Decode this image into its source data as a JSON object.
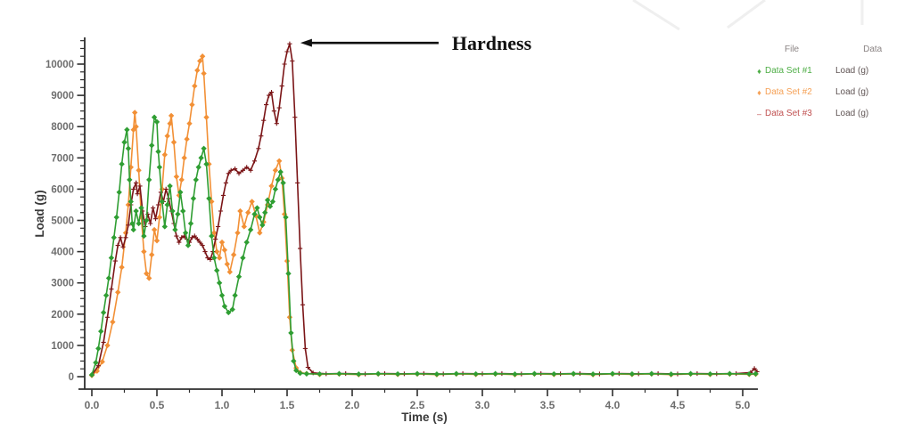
{
  "figure": {
    "legend": {
      "col1_header": "File",
      "col2_header": "Data",
      "entries": [
        {
          "file": "Data Set #1",
          "data": "Load (g)",
          "color": "#4fae47",
          "marker_glyph": "♦"
        },
        {
          "file": "Data Set #2",
          "data": "Load (g)",
          "color": "#f5a055",
          "marker_glyph": "♦"
        },
        {
          "file": "Data Set #3",
          "data": "Load (g)",
          "color": "#c05050",
          "marker_glyph": "–"
        }
      ]
    }
  },
  "chart_data": {
    "type": "line",
    "title": "",
    "xlabel": "Time (s)",
    "ylabel": "Load (g)",
    "xlim": [
      0,
      5.1
    ],
    "ylim": [
      0,
      10860
    ],
    "x_ticks": [
      0.0,
      0.5,
      1.0,
      1.5,
      2.0,
      2.5,
      3.0,
      3.5,
      4.0,
      4.5,
      5.0
    ],
    "y_ticks": [
      0,
      1000,
      2000,
      3000,
      4000,
      5000,
      6000,
      7000,
      8000,
      9000,
      10000
    ],
    "x_minor_step": 0.25,
    "y_minor_step": 250,
    "grid": false,
    "legend_position": "right",
    "annotation": {
      "text": "Hardness",
      "points_to": {
        "t": 1.52,
        "load": 10650
      }
    },
    "colors": {
      "axis": "#2e2e2e",
      "tick_label": "#6e6e6e",
      "axis_label": "#3a3a3a",
      "annotation_text": "#111111",
      "arrow": "#111111"
    },
    "series": [
      {
        "name": "Data Set #1 Load (g)",
        "color": "#2f9e33",
        "marker": "diamond",
        "points": [
          [
            0.0,
            60
          ],
          [
            0.03,
            450
          ],
          [
            0.05,
            900
          ],
          [
            0.07,
            1450
          ],
          [
            0.09,
            2050
          ],
          [
            0.11,
            2600
          ],
          [
            0.13,
            3150
          ],
          [
            0.15,
            3800
          ],
          [
            0.17,
            4450
          ],
          [
            0.19,
            5100
          ],
          [
            0.21,
            5900
          ],
          [
            0.23,
            6800
          ],
          [
            0.25,
            7500
          ],
          [
            0.27,
            7900
          ],
          [
            0.28,
            7300
          ],
          [
            0.29,
            6300
          ],
          [
            0.3,
            5600
          ],
          [
            0.31,
            4900
          ],
          [
            0.32,
            4700
          ],
          [
            0.34,
            5300
          ],
          [
            0.36,
            4900
          ],
          [
            0.38,
            5400
          ],
          [
            0.4,
            4500
          ],
          [
            0.42,
            5000
          ],
          [
            0.44,
            6300
          ],
          [
            0.46,
            7400
          ],
          [
            0.48,
            8300
          ],
          [
            0.5,
            8150
          ],
          [
            0.51,
            7200
          ],
          [
            0.52,
            6700
          ],
          [
            0.54,
            5600
          ],
          [
            0.56,
            4800
          ],
          [
            0.58,
            5500
          ],
          [
            0.6,
            6100
          ],
          [
            0.62,
            5300
          ],
          [
            0.64,
            4700
          ],
          [
            0.66,
            5200
          ],
          [
            0.68,
            5900
          ],
          [
            0.7,
            5300
          ],
          [
            0.72,
            4600
          ],
          [
            0.74,
            4200
          ],
          [
            0.76,
            4900
          ],
          [
            0.78,
            5700
          ],
          [
            0.8,
            6300
          ],
          [
            0.82,
            6700
          ],
          [
            0.84,
            7000
          ],
          [
            0.86,
            7300
          ],
          [
            0.88,
            6800
          ],
          [
            0.9,
            5700
          ],
          [
            0.92,
            4500
          ],
          [
            0.94,
            3800
          ],
          [
            0.96,
            3400
          ],
          [
            0.98,
            3000
          ],
          [
            1.0,
            2600
          ],
          [
            1.02,
            2250
          ],
          [
            1.05,
            2050
          ],
          [
            1.08,
            2150
          ],
          [
            1.1,
            2600
          ],
          [
            1.13,
            3200
          ],
          [
            1.16,
            3800
          ],
          [
            1.19,
            4300
          ],
          [
            1.22,
            4700
          ],
          [
            1.25,
            5200
          ],
          [
            1.27,
            5400
          ],
          [
            1.29,
            5100
          ],
          [
            1.31,
            4850
          ],
          [
            1.33,
            5250
          ],
          [
            1.35,
            5650
          ],
          [
            1.37,
            5450
          ],
          [
            1.39,
            5600
          ],
          [
            1.41,
            6000
          ],
          [
            1.43,
            6300
          ],
          [
            1.45,
            6550
          ],
          [
            1.47,
            6200
          ],
          [
            1.49,
            5100
          ],
          [
            1.51,
            3300
          ],
          [
            1.53,
            1400
          ],
          [
            1.55,
            500
          ],
          [
            1.57,
            200
          ],
          [
            1.6,
            110
          ],
          [
            1.65,
            90
          ],
          [
            1.75,
            85
          ],
          [
            1.9,
            95
          ],
          [
            2.05,
            80
          ],
          [
            2.2,
            95
          ],
          [
            2.35,
            85
          ],
          [
            2.5,
            95
          ],
          [
            2.65,
            80
          ],
          [
            2.8,
            95
          ],
          [
            2.95,
            85
          ],
          [
            3.1,
            95
          ],
          [
            3.25,
            80
          ],
          [
            3.4,
            95
          ],
          [
            3.55,
            85
          ],
          [
            3.7,
            95
          ],
          [
            3.85,
            80
          ],
          [
            4.0,
            95
          ],
          [
            4.15,
            85
          ],
          [
            4.3,
            95
          ],
          [
            4.45,
            80
          ],
          [
            4.6,
            95
          ],
          [
            4.75,
            85
          ],
          [
            4.9,
            95
          ],
          [
            5.05,
            85
          ],
          [
            5.1,
            90
          ]
        ]
      },
      {
        "name": "Data Set #2 Load (g)",
        "color": "#f29036",
        "marker": "diamond",
        "points": [
          [
            0.0,
            40
          ],
          [
            0.04,
            180
          ],
          [
            0.08,
            480
          ],
          [
            0.12,
            1000
          ],
          [
            0.16,
            1750
          ],
          [
            0.2,
            2700
          ],
          [
            0.23,
            3500
          ],
          [
            0.26,
            4600
          ],
          [
            0.28,
            5500
          ],
          [
            0.3,
            6700
          ],
          [
            0.32,
            7900
          ],
          [
            0.33,
            8450
          ],
          [
            0.34,
            8000
          ],
          [
            0.36,
            6600
          ],
          [
            0.38,
            5100
          ],
          [
            0.4,
            4000
          ],
          [
            0.42,
            3300
          ],
          [
            0.44,
            3150
          ],
          [
            0.46,
            3900
          ],
          [
            0.48,
            4700
          ],
          [
            0.5,
            4350
          ],
          [
            0.52,
            5100
          ],
          [
            0.54,
            6000
          ],
          [
            0.56,
            7100
          ],
          [
            0.58,
            7700
          ],
          [
            0.6,
            8100
          ],
          [
            0.61,
            8350
          ],
          [
            0.63,
            7500
          ],
          [
            0.65,
            6400
          ],
          [
            0.67,
            5800
          ],
          [
            0.69,
            6300
          ],
          [
            0.71,
            7000
          ],
          [
            0.73,
            7600
          ],
          [
            0.75,
            8100
          ],
          [
            0.77,
            8700
          ],
          [
            0.79,
            9300
          ],
          [
            0.81,
            9800
          ],
          [
            0.83,
            10100
          ],
          [
            0.85,
            10250
          ],
          [
            0.86,
            9700
          ],
          [
            0.88,
            8300
          ],
          [
            0.9,
            6800
          ],
          [
            0.92,
            5600
          ],
          [
            0.94,
            4600
          ],
          [
            0.96,
            4000
          ],
          [
            0.98,
            3800
          ],
          [
            1.0,
            4300
          ],
          [
            1.02,
            4050
          ],
          [
            1.04,
            3600
          ],
          [
            1.06,
            3350
          ],
          [
            1.09,
            3900
          ],
          [
            1.12,
            4600
          ],
          [
            1.14,
            5300
          ],
          [
            1.17,
            4800
          ],
          [
            1.2,
            5250
          ],
          [
            1.23,
            5600
          ],
          [
            1.26,
            5150
          ],
          [
            1.29,
            4600
          ],
          [
            1.32,
            4950
          ],
          [
            1.35,
            5500
          ],
          [
            1.38,
            6100
          ],
          [
            1.41,
            6600
          ],
          [
            1.44,
            6900
          ],
          [
            1.46,
            6350
          ],
          [
            1.48,
            5200
          ],
          [
            1.5,
            3700
          ],
          [
            1.52,
            1900
          ],
          [
            1.54,
            850
          ],
          [
            1.57,
            280
          ],
          [
            1.6,
            130
          ],
          [
            1.65,
            100
          ],
          [
            1.75,
            70
          ],
          [
            1.9,
            85
          ],
          [
            2.05,
            65
          ],
          [
            2.2,
            85
          ],
          [
            2.35,
            70
          ],
          [
            2.5,
            85
          ],
          [
            2.65,
            65
          ],
          [
            2.8,
            85
          ],
          [
            2.95,
            70
          ],
          [
            3.1,
            85
          ],
          [
            3.25,
            65
          ],
          [
            3.4,
            85
          ],
          [
            3.55,
            70
          ],
          [
            3.7,
            85
          ],
          [
            3.85,
            65
          ],
          [
            4.0,
            85
          ],
          [
            4.15,
            70
          ],
          [
            4.3,
            85
          ],
          [
            4.45,
            65
          ],
          [
            4.6,
            85
          ],
          [
            4.75,
            70
          ],
          [
            4.9,
            85
          ],
          [
            5.05,
            75
          ],
          [
            5.1,
            80
          ]
        ]
      },
      {
        "name": "Data Set #3 Load (g)",
        "color": "#7b1517",
        "marker": "plus",
        "points": [
          [
            0.0,
            50
          ],
          [
            0.05,
            350
          ],
          [
            0.09,
            1100
          ],
          [
            0.12,
            1900
          ],
          [
            0.15,
            2800
          ],
          [
            0.18,
            3700
          ],
          [
            0.2,
            4200
          ],
          [
            0.22,
            4450
          ],
          [
            0.24,
            4150
          ],
          [
            0.26,
            4450
          ],
          [
            0.28,
            4850
          ],
          [
            0.3,
            5500
          ],
          [
            0.32,
            6000
          ],
          [
            0.34,
            6200
          ],
          [
            0.35,
            5850
          ],
          [
            0.37,
            6100
          ],
          [
            0.39,
            5300
          ],
          [
            0.41,
            4800
          ],
          [
            0.43,
            5200
          ],
          [
            0.45,
            4900
          ],
          [
            0.47,
            5400
          ],
          [
            0.49,
            5050
          ],
          [
            0.51,
            5500
          ],
          [
            0.53,
            5900
          ],
          [
            0.55,
            5600
          ],
          [
            0.57,
            6000
          ],
          [
            0.59,
            5700
          ],
          [
            0.61,
            5300
          ],
          [
            0.63,
            4900
          ],
          [
            0.65,
            4500
          ],
          [
            0.67,
            4300
          ],
          [
            0.69,
            4450
          ],
          [
            0.71,
            4500
          ],
          [
            0.73,
            4400
          ],
          [
            0.75,
            4300
          ],
          [
            0.77,
            4450
          ],
          [
            0.79,
            4500
          ],
          [
            0.81,
            4400
          ],
          [
            0.83,
            4300
          ],
          [
            0.85,
            4200
          ],
          [
            0.87,
            4000
          ],
          [
            0.89,
            3800
          ],
          [
            0.91,
            3750
          ],
          [
            0.93,
            4000
          ],
          [
            0.95,
            4400
          ],
          [
            0.97,
            4800
          ],
          [
            0.99,
            5300
          ],
          [
            1.01,
            5800
          ],
          [
            1.03,
            6200
          ],
          [
            1.05,
            6500
          ],
          [
            1.07,
            6600
          ],
          [
            1.1,
            6650
          ],
          [
            1.13,
            6500
          ],
          [
            1.16,
            6600
          ],
          [
            1.19,
            6700
          ],
          [
            1.22,
            6600
          ],
          [
            1.25,
            6900
          ],
          [
            1.28,
            7300
          ],
          [
            1.3,
            7700
          ],
          [
            1.32,
            8200
          ],
          [
            1.34,
            8700
          ],
          [
            1.36,
            9000
          ],
          [
            1.38,
            9100
          ],
          [
            1.4,
            8500
          ],
          [
            1.42,
            8100
          ],
          [
            1.44,
            8600
          ],
          [
            1.46,
            9300
          ],
          [
            1.48,
            10000
          ],
          [
            1.5,
            10400
          ],
          [
            1.52,
            10650
          ],
          [
            1.54,
            10100
          ],
          [
            1.56,
            8300
          ],
          [
            1.58,
            6200
          ],
          [
            1.6,
            4100
          ],
          [
            1.62,
            2300
          ],
          [
            1.64,
            900
          ],
          [
            1.66,
            300
          ],
          [
            1.7,
            120
          ],
          [
            1.8,
            90
          ],
          [
            1.95,
            100
          ],
          [
            2.1,
            85
          ],
          [
            2.25,
            100
          ],
          [
            2.4,
            90
          ],
          [
            2.55,
            100
          ],
          [
            2.7,
            85
          ],
          [
            2.85,
            100
          ],
          [
            3.0,
            90
          ],
          [
            3.15,
            100
          ],
          [
            3.3,
            85
          ],
          [
            3.45,
            100
          ],
          [
            3.6,
            90
          ],
          [
            3.75,
            100
          ],
          [
            3.9,
            85
          ],
          [
            4.05,
            100
          ],
          [
            4.2,
            90
          ],
          [
            4.35,
            100
          ],
          [
            4.5,
            85
          ],
          [
            4.65,
            100
          ],
          [
            4.8,
            90
          ],
          [
            4.95,
            100
          ],
          [
            5.06,
            130
          ],
          [
            5.09,
            260
          ],
          [
            5.11,
            160
          ]
        ]
      }
    ]
  }
}
